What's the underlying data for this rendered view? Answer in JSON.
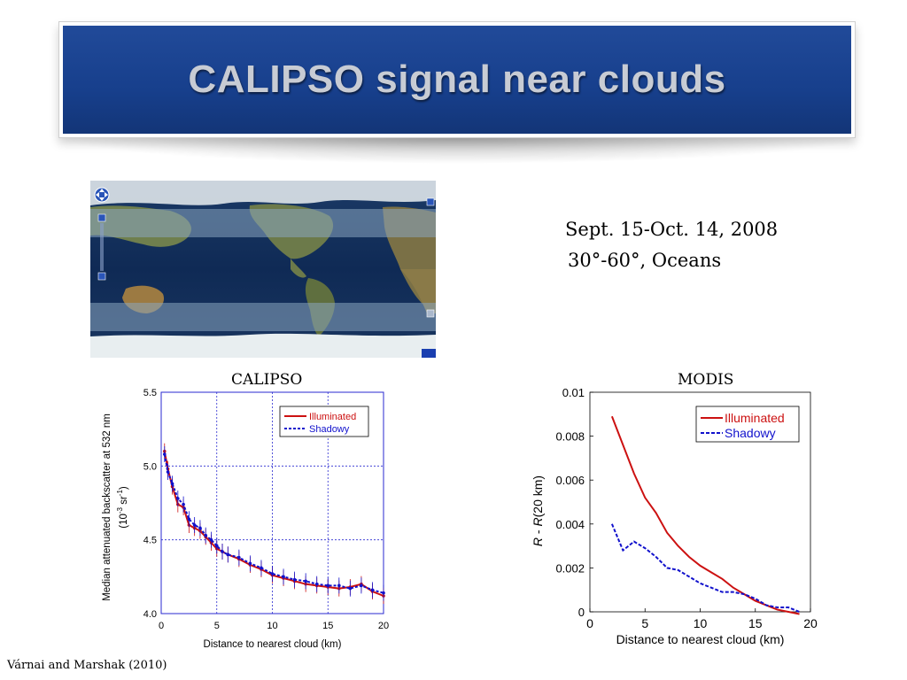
{
  "slide": {
    "title": "CALIPSO signal near clouds",
    "date_range": "Sept. 15-Oct. 14, 2008",
    "region": "30°-60°, Oceans",
    "citation": "Várnai and Marshak (2010)"
  },
  "map": {
    "description_icon": "zoom-controls",
    "colors": {
      "ocean": "#15305a",
      "band": "#7e9cb8"
    }
  },
  "chart_data": [
    {
      "type": "line",
      "title": "CALIPSO",
      "xlabel": "Distance to nearest cloud (km)",
      "ylabel": "Median attenuated backscatter at 532 nm",
      "ylabel_units": "(10",
      "ylabel_units_exp": "-3",
      "ylabel_units_mid": " sr",
      "ylabel_units_exp2": "-1",
      "ylabel_units_end": ")",
      "xlim": [
        0,
        20
      ],
      "ylim": [
        4.0,
        5.5
      ],
      "xticks": [
        "0",
        "5",
        "10",
        "15",
        "20"
      ],
      "yticks": [
        "4.0",
        "4.5",
        "5.0",
        "5.5"
      ],
      "grid": true,
      "legend_position": "top-right",
      "series": [
        {
          "name": "Illuminated",
          "color": "#cc1111",
          "dash": "solid",
          "x": [
            0.3,
            0.6,
            1.0,
            1.5,
            2.0,
            2.5,
            3.0,
            3.5,
            4.0,
            4.5,
            5.0,
            5.5,
            6.0,
            7.0,
            8.0,
            9.0,
            10.0,
            11.0,
            12.0,
            13.0,
            14.0,
            15.0,
            16.0,
            17.0,
            18.0,
            19.0,
            20.0
          ],
          "y": [
            5.1,
            4.98,
            4.86,
            4.74,
            4.72,
            4.6,
            4.58,
            4.56,
            4.52,
            4.48,
            4.44,
            4.42,
            4.4,
            4.37,
            4.33,
            4.3,
            4.26,
            4.24,
            4.22,
            4.2,
            4.19,
            4.18,
            4.17,
            4.18,
            4.2,
            4.15,
            4.12
          ]
        },
        {
          "name": "Shadowy",
          "color": "#1111cc",
          "dash": "dashed",
          "x": [
            0.3,
            0.6,
            1.0,
            1.5,
            2.0,
            2.5,
            3.0,
            3.5,
            4.0,
            4.5,
            5.0,
            5.5,
            6.0,
            7.0,
            8.0,
            9.0,
            10.0,
            11.0,
            12.0,
            13.0,
            14.0,
            15.0,
            16.0,
            17.0,
            18.0,
            19.0,
            20.0
          ],
          "y": [
            5.08,
            4.96,
            4.88,
            4.78,
            4.74,
            4.64,
            4.6,
            4.58,
            4.53,
            4.5,
            4.46,
            4.42,
            4.4,
            4.38,
            4.34,
            4.31,
            4.27,
            4.25,
            4.23,
            4.22,
            4.2,
            4.19,
            4.19,
            4.17,
            4.19,
            4.16,
            4.14
          ]
        }
      ]
    },
    {
      "type": "line",
      "title": "MODIS",
      "xlabel": "Distance to nearest cloud (km)",
      "ylabel_r1": "R",
      "ylabel_sep": "  -  ",
      "ylabel_r2": "R",
      "ylabel_rest": "(20 km)",
      "xlim": [
        0,
        20
      ],
      "ylim": [
        0,
        0.01
      ],
      "xticks": [
        "0",
        "5",
        "10",
        "15",
        "20"
      ],
      "yticks": [
        "0",
        "0.002",
        "0.004",
        "0.006",
        "0.008",
        "0.01"
      ],
      "grid": false,
      "legend_position": "top-right",
      "series": [
        {
          "name": "Illuminated",
          "color": "#cc1111",
          "dash": "solid",
          "x": [
            2,
            3,
            4,
            5,
            6,
            7,
            8,
            9,
            10,
            11,
            12,
            13,
            14,
            15,
            16,
            17,
            18,
            19
          ],
          "y": [
            0.0089,
            0.0076,
            0.0063,
            0.0052,
            0.0045,
            0.0036,
            0.003,
            0.0025,
            0.0021,
            0.0018,
            0.0015,
            0.0011,
            0.0008,
            0.0005,
            0.0003,
            0.0001,
            0.0,
            -0.0001
          ]
        },
        {
          "name": "Shadowy",
          "color": "#1111cc",
          "dash": "dashed",
          "x": [
            2,
            3,
            4,
            5,
            6,
            7,
            8,
            9,
            10,
            11,
            12,
            13,
            14,
            15,
            16,
            17,
            18,
            19
          ],
          "y": [
            0.004,
            0.0028,
            0.0032,
            0.0029,
            0.0025,
            0.002,
            0.0019,
            0.0016,
            0.0013,
            0.0011,
            0.0009,
            0.0009,
            0.0008,
            0.0006,
            0.0003,
            0.0002,
            0.0002,
            0.0
          ]
        }
      ]
    }
  ]
}
